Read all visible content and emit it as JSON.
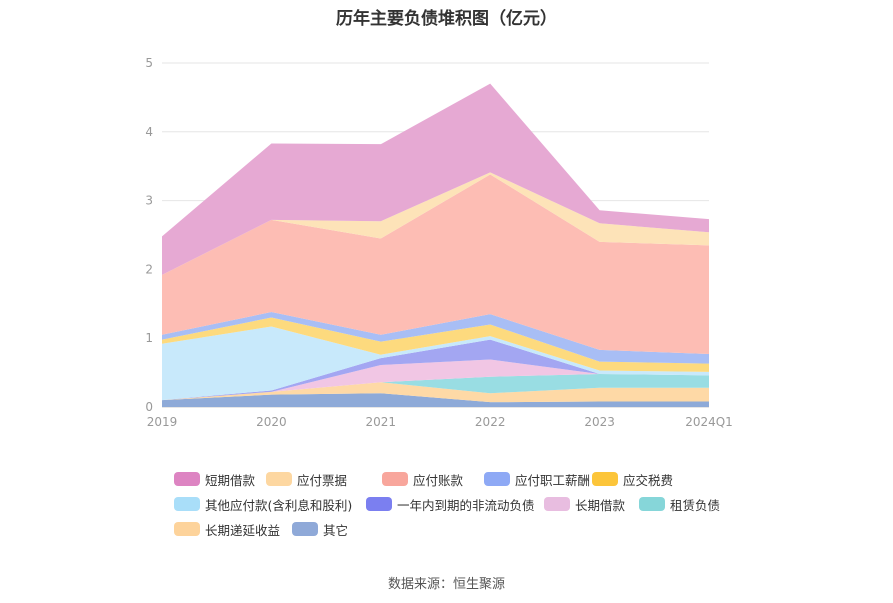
{
  "title": "历年主要负债堆积图（亿元）",
  "source": "数据来源：恒生聚源",
  "chart_data": {
    "type": "area",
    "stacked": true,
    "title": "历年主要负债堆积图（亿元）",
    "categories": [
      "2019",
      "2020",
      "2021",
      "2022",
      "2023",
      "2024Q1"
    ],
    "ylim": [
      0,
      5
    ],
    "yticks": [
      0,
      1,
      2,
      3,
      4,
      5
    ],
    "grid": true,
    "legend_position": "bottom",
    "series": [
      {
        "name": "其它",
        "color": "#8eaad8",
        "values": [
          0.1,
          0.18,
          0.2,
          0.07,
          0.08,
          0.08
        ]
      },
      {
        "name": "长期递延收益",
        "color": "#fed9a6",
        "values": [
          0.0,
          0.04,
          0.16,
          0.13,
          0.2,
          0.2
        ]
      },
      {
        "name": "租赁负债",
        "color": "#99dde3",
        "values": [
          0.0,
          0.0,
          0.0,
          0.24,
          0.2,
          0.18
        ]
      },
      {
        "name": "长期借款",
        "color": "#f1c6e4",
        "values": [
          0.0,
          0.0,
          0.25,
          0.25,
          0.0,
          0.0
        ]
      },
      {
        "name": "一年内到期的非流动负债",
        "color": "#a3a6f2",
        "values": [
          0.0,
          0.02,
          0.1,
          0.29,
          0.0,
          0.0
        ]
      },
      {
        "name": "其他应付款(含利息和股利)",
        "color": "#c8e9fb",
        "values": [
          0.82,
          0.93,
          0.05,
          0.05,
          0.05,
          0.05
        ]
      },
      {
        "name": "应交税费",
        "color": "#fdda7e",
        "values": [
          0.06,
          0.13,
          0.19,
          0.17,
          0.13,
          0.12
        ]
      },
      {
        "name": "应付职工薪酬",
        "color": "#a8bef5",
        "values": [
          0.07,
          0.08,
          0.1,
          0.15,
          0.17,
          0.14
        ]
      },
      {
        "name": "应付账款",
        "color": "#fdbdb4",
        "values": [
          0.87,
          1.34,
          1.4,
          2.03,
          1.57,
          1.58
        ]
      },
      {
        "name": "应付票据",
        "color": "#fde3b8",
        "values": [
          0.0,
          0.0,
          0.25,
          0.03,
          0.27,
          0.19
        ]
      },
      {
        "name": "短期借款",
        "color": "#e6a9d3",
        "values": [
          0.56,
          1.11,
          1.12,
          1.29,
          0.19,
          0.19
        ]
      }
    ]
  },
  "legend": [
    {
      "label": "短期借款",
      "color": "#dd84c2"
    },
    {
      "label": "应付票据",
      "color": "#fdd7a1"
    },
    {
      "label": "应付账款",
      "color": "#f8a69c"
    },
    {
      "label": "应付职工薪酬",
      "color": "#8ea9f5"
    },
    {
      "label": "应交税费",
      "color": "#fcc53a"
    },
    {
      "label": "其他应付款(含利息和股利)",
      "color": "#a9def9"
    },
    {
      "label": "一年内到期的非流动负债",
      "color": "#7b7ff0"
    },
    {
      "label": "长期借款",
      "color": "#e8bde0"
    },
    {
      "label": "租赁负债",
      "color": "#86d6d9"
    },
    {
      "label": "长期递延收益",
      "color": "#fdd39b"
    },
    {
      "label": "其它",
      "color": "#8fa9d8"
    }
  ]
}
